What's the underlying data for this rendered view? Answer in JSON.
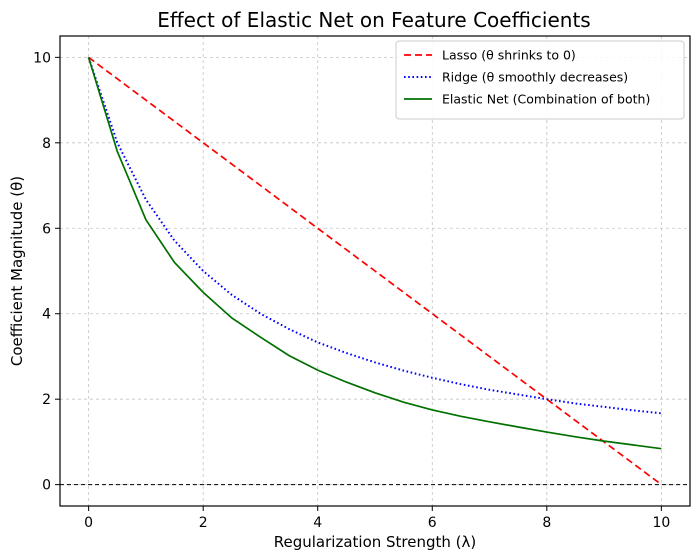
{
  "chart_data": {
    "type": "line",
    "title": "Effect of Elastic Net on Feature Coefficients",
    "xlabel": "Regularization Strength (λ)",
    "ylabel": "Coefficient Magnitude (θ)",
    "xlim": [
      -0.5,
      10.5
    ],
    "ylim": [
      -0.5,
      10.5
    ],
    "xticks": [
      0,
      2,
      4,
      6,
      8,
      10
    ],
    "yticks": [
      0,
      2,
      4,
      6,
      8,
      10
    ],
    "grid": true,
    "legend_position": "top-right",
    "baseline_y": 0,
    "series": [
      {
        "name": "Lasso (θ shrinks to 0)",
        "color": "#ff0000",
        "style": "dashed",
        "x": [
          0,
          1,
          2,
          3,
          4,
          5,
          6,
          7,
          8,
          9,
          10
        ],
        "y": [
          10,
          9,
          8,
          7,
          6,
          5,
          4,
          3,
          2,
          1,
          0
        ]
      },
      {
        "name": "Ridge (θ smoothly decreases)",
        "color": "#0000ff",
        "style": "dotted",
        "x": [
          0,
          0.5,
          1,
          1.5,
          2,
          2.5,
          3,
          3.5,
          4,
          4.5,
          5,
          5.5,
          6,
          6.5,
          7,
          7.5,
          8,
          8.5,
          9,
          9.5,
          10
        ],
        "y": [
          10,
          8.0,
          6.67,
          5.71,
          5.0,
          4.44,
          4.0,
          3.64,
          3.33,
          3.08,
          2.86,
          2.67,
          2.5,
          2.35,
          2.22,
          2.11,
          2.0,
          1.9,
          1.82,
          1.74,
          1.67
        ]
      },
      {
        "name": "Elastic Net (Combination of both)",
        "color": "#007000",
        "style": "solid",
        "x": [
          0,
          0.5,
          1,
          1.5,
          2,
          2.5,
          3,
          3.5,
          4,
          4.5,
          5,
          5.5,
          6,
          6.5,
          7,
          7.5,
          8,
          8.5,
          9,
          9.5,
          10
        ],
        "y": [
          10,
          7.8,
          6.2,
          5.2,
          4.5,
          3.9,
          3.45,
          3.02,
          2.68,
          2.4,
          2.15,
          1.93,
          1.75,
          1.6,
          1.47,
          1.35,
          1.23,
          1.12,
          1.02,
          0.93,
          0.84
        ]
      }
    ]
  }
}
